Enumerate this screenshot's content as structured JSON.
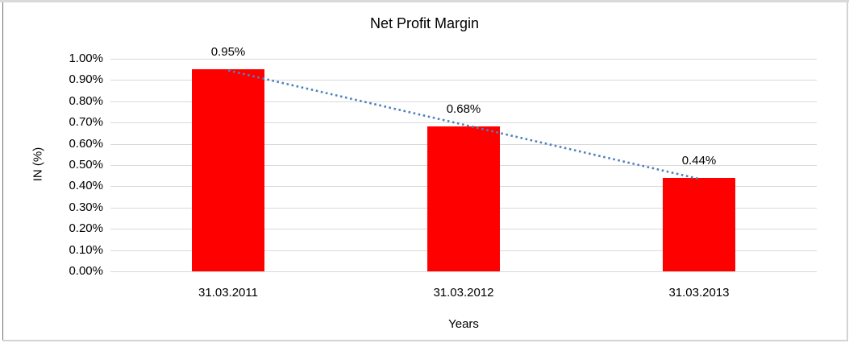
{
  "chart_data": {
    "type": "bar",
    "title": "Net Profit Margin",
    "xlabel": "Years",
    "ylabel": "IN (%)",
    "categories": [
      "31.03.2011",
      "31.03.2012",
      "31.03.2013"
    ],
    "values": [
      0.95,
      0.68,
      0.44
    ],
    "data_labels": [
      "0.95%",
      "0.68%",
      "0.44%"
    ],
    "yticks": [
      "1.00%",
      "0.90%",
      "0.80%",
      "0.70%",
      "0.60%",
      "0.50%",
      "0.40%",
      "0.30%",
      "0.20%",
      "0.10%",
      "0.00%"
    ],
    "ylim": [
      0,
      1.0
    ],
    "ytick_step": 0.1,
    "grid": true,
    "legend": false,
    "colors": {
      "bar": "#ff0000",
      "trendline": "#4f81bd",
      "gridline": "#d9d9d9",
      "text": "#000000"
    },
    "trendline": {
      "type": "linear",
      "style": "dotted"
    }
  }
}
